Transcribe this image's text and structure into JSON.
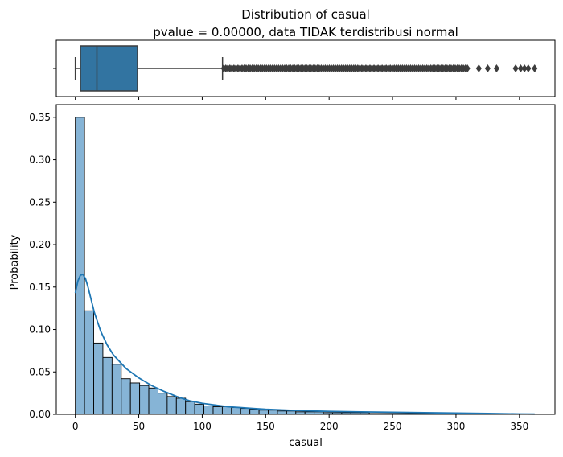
{
  "title_line1": "Distribution of casual",
  "title_line2": "pvalue = 0.00000, data TIDAK terdistribusi normal",
  "colors": {
    "box_fill": "#3274a1",
    "hist_fill": "#86b4d6",
    "kde_line": "#1f77b4",
    "outline": "#3d3d3d"
  },
  "chart_data": [
    {
      "type": "boxplot",
      "variable": "casual",
      "xlim": [
        -15,
        378
      ],
      "whisker_low": 0,
      "q1": 4,
      "median": 17,
      "q3": 49,
      "whisker_high": 116,
      "outliers_dense_range": [
        117,
        310
      ],
      "outliers_sparse": [
        318,
        325,
        332,
        347,
        351,
        354,
        357,
        362
      ],
      "ytick_labels": [
        ""
      ]
    },
    {
      "type": "histogram",
      "xlabel": "casual",
      "ylabel": "Probability",
      "xlim": [
        -15,
        378
      ],
      "ylim": [
        0,
        0.365
      ],
      "bin_width": 7.24,
      "bin_start": 0,
      "values": [
        0.35,
        0.122,
        0.084,
        0.067,
        0.059,
        0.042,
        0.037,
        0.034,
        0.031,
        0.025,
        0.021,
        0.019,
        0.015,
        0.012,
        0.01,
        0.009,
        0.009,
        0.008,
        0.007,
        0.006,
        0.005,
        0.005,
        0.004,
        0.004,
        0.003,
        0.003,
        0.003,
        0.002,
        0.002,
        0.002,
        0.002,
        0.002,
        0.001,
        0.001,
        0.001,
        0.001,
        0.001,
        0.001,
        0.001,
        0.001,
        0.0005,
        0.0005,
        0.0005,
        0.0005,
        0.0005,
        0.0005,
        0.0005,
        0.0005,
        0.0005,
        0.0005
      ],
      "kde": {
        "x": [
          0,
          2,
          4,
          6,
          8,
          10,
          12,
          15,
          20,
          25,
          30,
          40,
          50,
          60,
          70,
          80,
          90,
          100,
          110,
          120,
          130,
          140,
          150,
          175,
          200,
          225,
          250,
          275,
          300,
          325,
          350,
          362
        ],
        "y": [
          0.143,
          0.157,
          0.164,
          0.165,
          0.16,
          0.15,
          0.138,
          0.12,
          0.098,
          0.082,
          0.07,
          0.054,
          0.043,
          0.034,
          0.027,
          0.021,
          0.016,
          0.013,
          0.011,
          0.009,
          0.008,
          0.007,
          0.006,
          0.0045,
          0.0035,
          0.003,
          0.0025,
          0.002,
          0.0015,
          0.001,
          0.0005,
          0.0003
        ]
      },
      "xticks": [
        0,
        50,
        100,
        150,
        200,
        250,
        300,
        350
      ],
      "xtick_labels": [
        "0",
        "50",
        "100",
        "150",
        "200",
        "250",
        "300",
        "350"
      ],
      "yticks": [
        0.0,
        0.05,
        0.1,
        0.15,
        0.2,
        0.25,
        0.3,
        0.35
      ],
      "ytick_labels": [
        "0.00",
        "0.05",
        "0.10",
        "0.15",
        "0.20",
        "0.25",
        "0.30",
        "0.35"
      ]
    }
  ]
}
